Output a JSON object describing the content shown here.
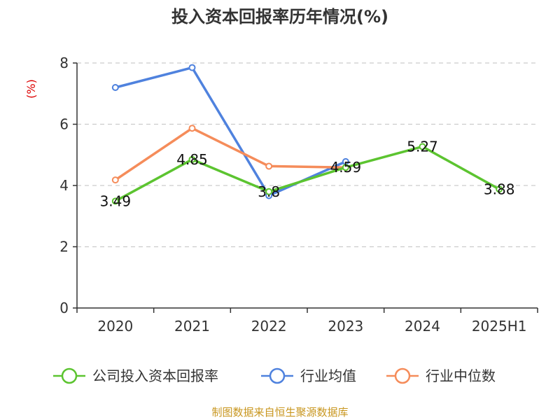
{
  "chart_data": {
    "type": "line",
    "title": "投入资本回报率历年情况(%)",
    "ylabel": "(%)",
    "xlabel": "",
    "categories": [
      "2020",
      "2021",
      "2022",
      "2023",
      "2024",
      "2025H1"
    ],
    "ylim": [
      0,
      8
    ],
    "yticks": [
      0,
      2,
      4,
      6,
      8
    ],
    "grid": "horizontal-dashed",
    "legend_position": "bottom",
    "series": [
      {
        "name": "公司投入资本回报率",
        "color": "#5cc430",
        "values": [
          3.49,
          4.85,
          3.8,
          4.59,
          5.27,
          3.88
        ],
        "labels": [
          "3.49",
          "4.85",
          "3.8",
          "4.59",
          "5.27",
          "3.88"
        ]
      },
      {
        "name": "行业均值",
        "color": "#4f82de",
        "values": [
          7.2,
          7.85,
          3.67,
          4.78,
          null,
          null
        ]
      },
      {
        "name": "行业中位数",
        "color": "#f58c5a",
        "values": [
          4.18,
          5.87,
          4.63,
          4.59,
          null,
          null
        ]
      }
    ],
    "source": "制图数据来自恒生聚源数据库"
  }
}
